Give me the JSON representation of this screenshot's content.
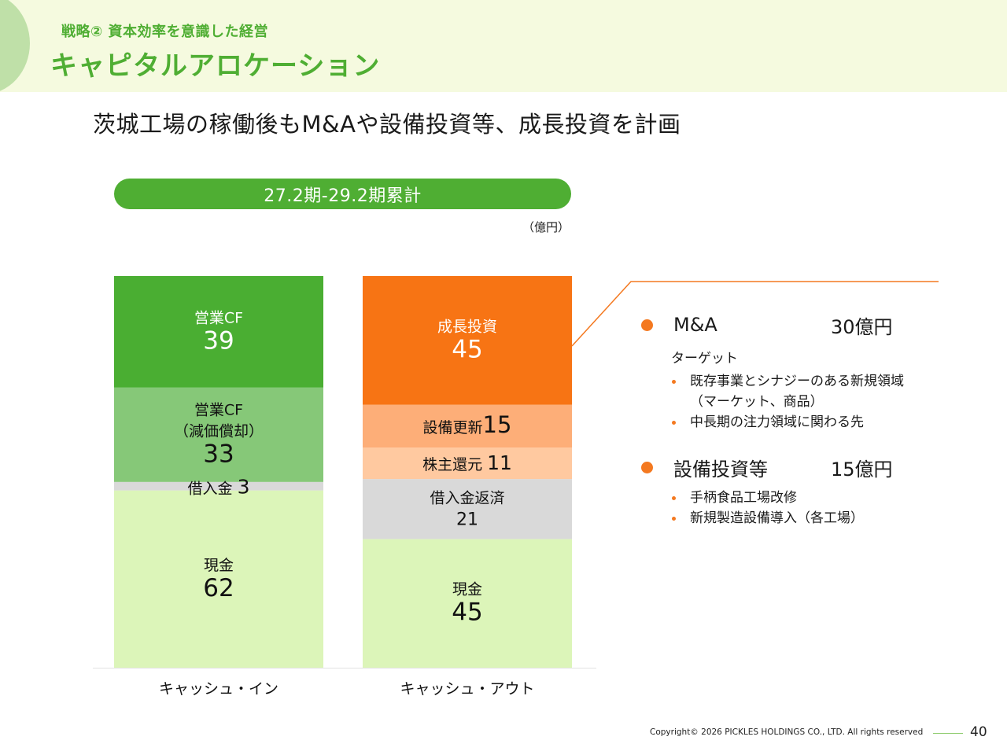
{
  "header": {
    "subtitle": "戦略② 資本効率を意識した経営",
    "title": "キャピタルアロケーション"
  },
  "lead": "茨城工場の稼働後もM&Aや設備投資等、成長投資を計画",
  "period_label": "27.2期-29.2期累計",
  "unit_label": "（億円）",
  "colors": {
    "brand_green": "#4fae33",
    "accent_orange": "#f47920"
  },
  "chart_data": {
    "type": "bar",
    "stacked": true,
    "title": "27.2期-29.2期累計",
    "unit": "億円",
    "categories": [
      "キャッシュ・イン",
      "キャッシュ・アウト"
    ],
    "bars": [
      {
        "category": "キャッシュ・イン",
        "segments_bottom_to_top": [
          {
            "label": "現金",
            "value": 62,
            "color": "#dcf5b9",
            "text_color": "#111111"
          },
          {
            "label": "借入金",
            "value": 3,
            "color": "#d9d9d9",
            "text_color": "#111111",
            "inline": true
          },
          {
            "label": "営業CF\n（減価償却）",
            "value": 33,
            "color": "#86c878",
            "text_color": "#111111"
          },
          {
            "label": "営業CF",
            "value": 39,
            "color": "#4aae32",
            "text_color": "#ffffff"
          }
        ]
      },
      {
        "category": "キャッシュ・アウト",
        "segments_bottom_to_top": [
          {
            "label": "現金",
            "value": 45,
            "color": "#dcf5b9",
            "text_color": "#111111"
          },
          {
            "label": "借入金返済",
            "value": 21,
            "color": "#d9d9d9",
            "text_color": "#111111"
          },
          {
            "label": "株主還元",
            "value": 11,
            "color": "#ffc9a0",
            "text_color": "#111111",
            "inline": true
          },
          {
            "label": "設備更新",
            "value": 15,
            "color": "#fdae78",
            "text_color": "#111111",
            "inline": true
          },
          {
            "label": "成長投資",
            "value": 45,
            "color": "#f77414",
            "text_color": "#ffffff"
          }
        ]
      }
    ],
    "ylim": [
      0,
      137
    ],
    "grid": false,
    "legend": "none"
  },
  "growth_detail": {
    "items": [
      {
        "name": "M&A",
        "amount": "30億円",
        "note": "ターゲット",
        "bullets": [
          "既存事業とシナジーのある新規領域\n（マーケット、商品）",
          "中長期の注力領域に関わる先"
        ]
      },
      {
        "name": "設備投資等",
        "amount": "15億円",
        "note": "",
        "bullets": [
          "手柄食品工場改修",
          "新規製造設備導入（各工場）"
        ]
      }
    ]
  },
  "footer": {
    "copyright": "Copyright© 2026 PICKLES HOLDINGS CO., LTD. All rights reserved",
    "page_number": "40"
  }
}
